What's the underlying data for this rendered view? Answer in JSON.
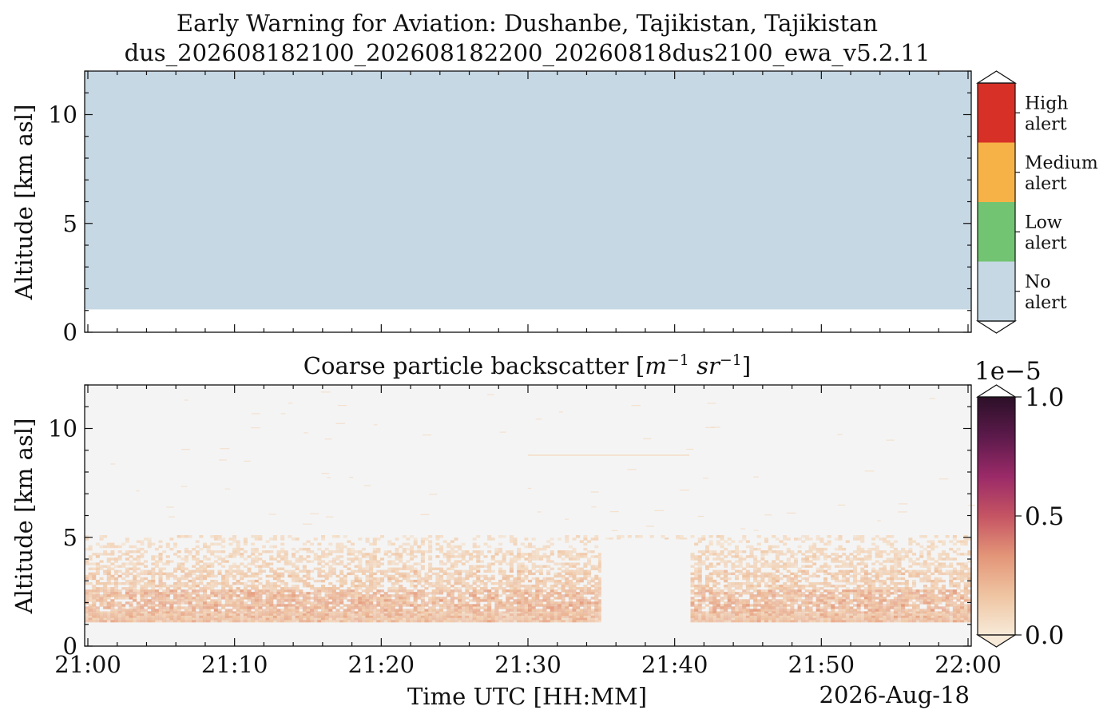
{
  "figure": {
    "title_line1": "Early Warning for Aviation: Dushanbe, Tajikistan, Tajikistan",
    "title_line2": "dus_202608182100_202608182200_20260818dus2100_ewa_v5.2.11"
  },
  "chart_data": [
    {
      "type": "heatmap",
      "panel": "alert",
      "title": "",
      "xlabel": "",
      "ylabel": "Altitude [km asl]",
      "xlim": [
        "21:00",
        "22:00"
      ],
      "ylim": [
        0,
        12
      ],
      "yticks": [
        0,
        5,
        10
      ],
      "y_minor_step": 1,
      "categories": [
        "No\nalert",
        "Low\nalert",
        "Medium\nalert",
        "High\nalert"
      ],
      "colors": [
        "#c6d8e4",
        "#72c472",
        "#f7b247",
        "#d73027"
      ],
      "cells": [
        {
          "x0": "21:00",
          "x1": "22:00",
          "y0": 1.05,
          "y1": 12,
          "category": "No\nalert"
        }
      ]
    },
    {
      "type": "heatmap",
      "panel": "backscatter",
      "title": "Coarse particle backscatter [m⁻¹ sr⁻¹]",
      "xlabel": "Time UTC [HH:MM]",
      "ylabel": "Altitude [km asl]",
      "date_label": "2026-Aug-18",
      "x_ticks": [
        "21:00",
        "21:10",
        "21:20",
        "21:30",
        "21:40",
        "21:50",
        "22:00"
      ],
      "x_minor_step_min": 2,
      "xlim": [
        "21:00",
        "22:00"
      ],
      "ylim": [
        0,
        12
      ],
      "yticks": [
        0,
        5,
        10
      ],
      "y_minor_step": 1,
      "colorbar": {
        "min": 0.0,
        "max": 1.0,
        "ticks": [
          "0.0",
          "0.5",
          "1.0"
        ],
        "multiplier": "1e−5",
        "colors": [
          "#f7ead8",
          "#efc4a1",
          "#e39578",
          "#c55463",
          "#9a2a68",
          "#5c1a4b",
          "#2c1028"
        ]
      },
      "layers": [
        {
          "y0": 1.1,
          "y1": 1.6,
          "value": 0.2
        },
        {
          "y0": 1.6,
          "y1": 2.6,
          "value": 0.22
        },
        {
          "y0": 2.6,
          "y1": 3.5,
          "value": 0.15
        },
        {
          "y0": 3.5,
          "y1": 4.4,
          "value": 0.11
        },
        {
          "y0": 4.4,
          "y1": 5.1,
          "value": 0.08
        }
      ],
      "missing_data": [
        {
          "x0": "21:35",
          "x1": "21:41",
          "y0": 1.05,
          "y1": 4.9
        }
      ],
      "background_color": "#f4f4f4"
    }
  ]
}
